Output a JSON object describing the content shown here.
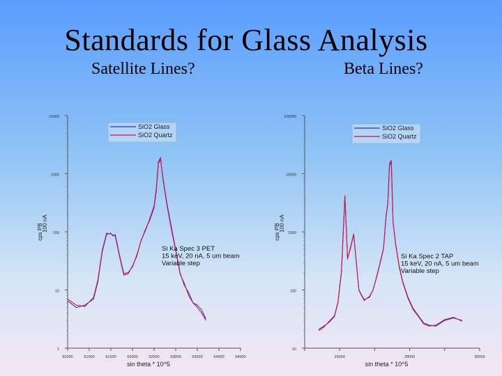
{
  "slide": {
    "title": "Standards for Glass Analysis",
    "subtitle_left": "Satellite Lines?",
    "subtitle_right": "Beta Lines?"
  },
  "colors": {
    "glass": "#2233dd",
    "quartz": "#dd1133"
  },
  "chart_data": [
    {
      "type": "line",
      "log_y": true,
      "ylim": [
        1,
        10000
      ],
      "y_ticks": [
        1,
        10,
        100,
        1000,
        10000
      ],
      "y_tick_labels": [
        "1",
        "10",
        "100",
        "1000",
        "10000"
      ],
      "xlim": [
        0.6,
        1.0
      ],
      "x_ticks": [
        0.6,
        0.65,
        0.7,
        0.75,
        0.8,
        0.85,
        0.9,
        0.95,
        1.0
      ],
      "x_tick_labels": [
        "60200",
        "61000",
        "61500",
        "62000",
        "62500",
        "63000",
        "63500",
        "64000",
        "64500"
      ],
      "ylabel": "cps PB",
      "ylabel2": "100 nA",
      "xlabel": "sin theta * 10^5",
      "legend": [
        "SiO2 Glass",
        "SiO2 Quartz"
      ],
      "annotation": [
        "Si Ka Spec 3 PET",
        "15 keV, 20 nA, 5 um beam",
        "Variable step"
      ],
      "series": [
        {
          "name": "SiO2 Glass",
          "x": [
            0.6,
            0.62,
            0.64,
            0.66,
            0.67,
            0.68,
            0.69,
            0.7,
            0.705,
            0.71,
            0.72,
            0.73,
            0.74,
            0.75,
            0.76,
            0.77,
            0.78,
            0.79,
            0.8,
            0.805,
            0.81,
            0.815,
            0.82,
            0.83,
            0.84,
            0.85,
            0.86,
            0.87,
            0.88,
            0.89,
            0.9,
            0.91,
            0.92
          ],
          "y": [
            6.5,
            5,
            5.5,
            7,
            14,
            45,
            90,
            95,
            85,
            90,
            40,
            19,
            20,
            25,
            40,
            70,
            110,
            160,
            260,
            500,
            1500,
            1800,
            900,
            300,
            120,
            50,
            20,
            12,
            9,
            6,
            5.5,
            4.5,
            3.2
          ]
        },
        {
          "name": "SiO2 Quartz",
          "x": [
            0.6,
            0.62,
            0.64,
            0.66,
            0.67,
            0.68,
            0.69,
            0.7,
            0.705,
            0.71,
            0.72,
            0.73,
            0.74,
            0.75,
            0.76,
            0.77,
            0.78,
            0.79,
            0.8,
            0.805,
            0.81,
            0.815,
            0.82,
            0.83,
            0.84,
            0.85,
            0.86,
            0.87,
            0.88,
            0.89,
            0.9,
            0.91,
            0.92
          ],
          "y": [
            7,
            5.5,
            5.2,
            7.5,
            15,
            48,
            95,
            92,
            88,
            85,
            38,
            18,
            19,
            26,
            38,
            72,
            105,
            170,
            280,
            550,
            1600,
            1900,
            850,
            280,
            110,
            48,
            19,
            13,
            8,
            6,
            5,
            4,
            3
          ]
        }
      ]
    },
    {
      "type": "line",
      "log_y": true,
      "ylim": [
        10,
        100000
      ],
      "y_ticks": [
        10,
        100,
        1000,
        10000,
        100000
      ],
      "y_tick_labels": [
        "10",
        "100",
        "1000",
        "10000",
        "100000"
      ],
      "xlim": [
        0.0,
        1.0
      ],
      "x_ticks": [
        0.0,
        0.2,
        0.4,
        0.6,
        0.8,
        1.0
      ],
      "x_tick_labels": [
        "",
        "25000",
        "",
        "28000",
        "",
        "30000"
      ],
      "ylabel": "cps PB",
      "ylabel2": "100 nA",
      "xlabel": "sin theta * 10^5",
      "legend": [
        "SiO2 Glass",
        "SiO2 Quartz"
      ],
      "annotation": [
        "Si Ka Spec 2 TAP",
        "15 keV, 20 nA, 5 um beam",
        "Variable step"
      ],
      "series": [
        {
          "name": "SiO2 Glass",
          "x": [
            0.08,
            0.11,
            0.14,
            0.17,
            0.19,
            0.21,
            0.23,
            0.245,
            0.26,
            0.28,
            0.31,
            0.34,
            0.37,
            0.39,
            0.41,
            0.43,
            0.45,
            0.465,
            0.475,
            0.485,
            0.495,
            0.505,
            0.52,
            0.54,
            0.56,
            0.59,
            0.62,
            0.65,
            0.68,
            0.71,
            0.75,
            0.8,
            0.85,
            0.9
          ],
          "y": [
            21,
            24,
            28,
            35,
            60,
            200,
            4000,
            350,
            500,
            900,
            100,
            68,
            75,
            100,
            160,
            280,
            500,
            1800,
            3000,
            14000,
            16000,
            1500,
            600,
            260,
            140,
            75,
            48,
            36,
            27,
            25,
            24,
            30,
            33,
            30
          ]
        },
        {
          "name": "SiO2 Quartz",
          "x": [
            0.08,
            0.11,
            0.14,
            0.17,
            0.19,
            0.21,
            0.23,
            0.245,
            0.26,
            0.28,
            0.31,
            0.34,
            0.37,
            0.39,
            0.41,
            0.43,
            0.45,
            0.465,
            0.475,
            0.485,
            0.495,
            0.505,
            0.52,
            0.54,
            0.56,
            0.59,
            0.62,
            0.65,
            0.68,
            0.71,
            0.75,
            0.8,
            0.85,
            0.9
          ],
          "y": [
            20,
            23,
            29,
            36,
            62,
            210,
            4200,
            340,
            520,
            920,
            98,
            66,
            78,
            98,
            165,
            290,
            520,
            1900,
            3100,
            15000,
            17000,
            1400,
            620,
            250,
            135,
            72,
            46,
            35,
            26,
            24,
            25,
            31,
            34,
            29
          ]
        }
      ]
    }
  ]
}
